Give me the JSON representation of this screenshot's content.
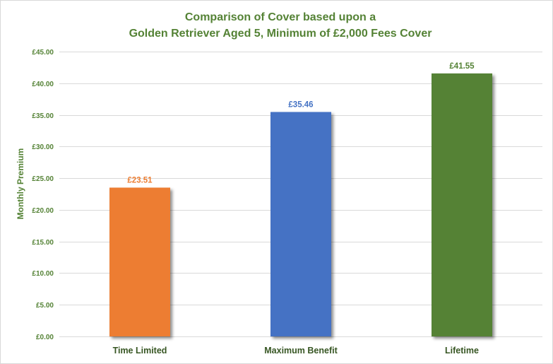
{
  "chart_data": {
    "type": "bar",
    "title": "Comparison of Cover based upon a",
    "subtitle": "Golden Retriever Aged 5, Minimum of £2,000 Fees Cover",
    "xlabel": "",
    "ylabel": "Monthly Premium",
    "categories": [
      "Time Limited",
      "Maximum Benefit",
      "Lifetime"
    ],
    "values": [
      23.51,
      35.46,
      41.55
    ],
    "data_labels": [
      "£23.51",
      "£35.46",
      "£41.55"
    ],
    "bar_colors": [
      "#ED7D31",
      "#4472C4",
      "#548235"
    ],
    "ylim": [
      0,
      45
    ],
    "yticks": [
      0,
      5,
      10,
      15,
      20,
      25,
      30,
      35,
      40,
      45
    ],
    "ytick_labels": [
      "£0.00",
      "£5.00",
      "£10.00",
      "£15.00",
      "£20.00",
      "£25.00",
      "£30.00",
      "£35.00",
      "£40.00",
      "£45.00"
    ],
    "grid": true,
    "legend": "none"
  }
}
